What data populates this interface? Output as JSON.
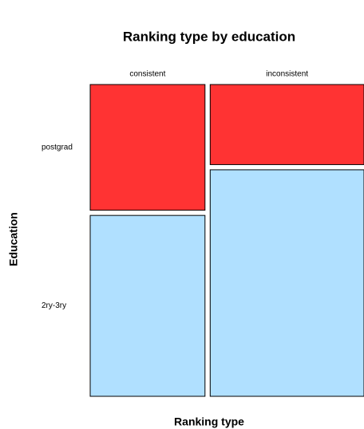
{
  "chart_data": {
    "type": "mosaic",
    "title": "Ranking type by education",
    "x_label": "Ranking type",
    "y_label": "Education",
    "categories": [
      "consistent",
      "inconsistent"
    ],
    "series": [
      {
        "name": "postgrad",
        "color": "#ff3333",
        "values": [
          41,
          35
        ]
      },
      {
        "name": "2ry-3ry",
        "color": "#b0e0ff",
        "values": [
          59,
          99
        ]
      }
    ]
  }
}
